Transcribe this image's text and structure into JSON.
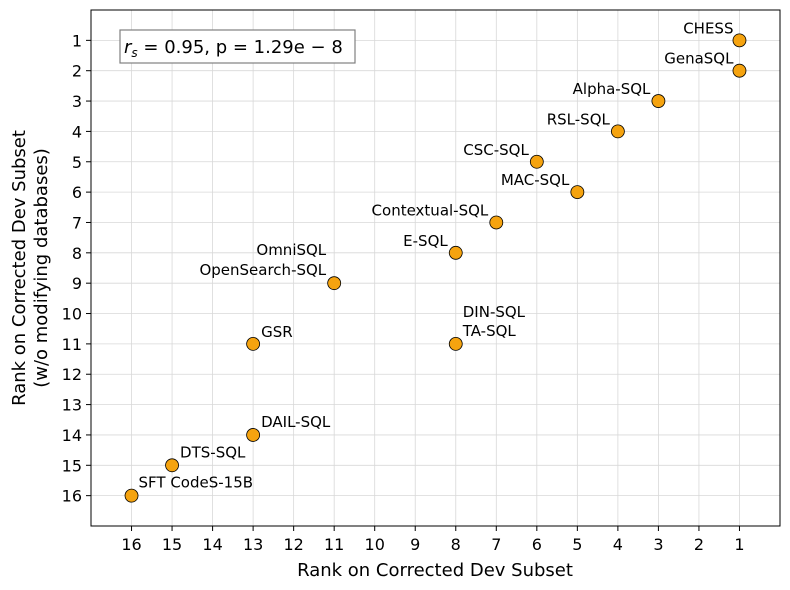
{
  "chart_data": {
    "type": "scatter",
    "xlabel": "Rank on Corrected Dev Subset",
    "ylabel_line1": "Rank on Corrected Dev Subset",
    "ylabel_line2": "(w/o modifying databases)",
    "xlim": [
      17,
      0
    ],
    "ylim": [
      17,
      0
    ],
    "x_inverted": true,
    "y_inverted": true,
    "ticks": [
      1,
      2,
      3,
      4,
      5,
      6,
      7,
      8,
      9,
      10,
      11,
      12,
      13,
      14,
      15,
      16
    ],
    "grid": true,
    "marker_color": "#f5a30f",
    "annotation": {
      "prefix": "r",
      "subscript": "s",
      "text": " = 0.95, p = 1.29e − 8"
    },
    "points": [
      {
        "label": "CHESS",
        "x": 1,
        "y": 1
      },
      {
        "label": "GenaSQL",
        "x": 1,
        "y": 2
      },
      {
        "label": "Alpha-SQL",
        "x": 3,
        "y": 3
      },
      {
        "label": "RSL-SQL",
        "x": 4,
        "y": 4
      },
      {
        "label": "CSC-SQL",
        "x": 6,
        "y": 5
      },
      {
        "label": "MAC-SQL",
        "x": 5,
        "y": 6
      },
      {
        "label": "Contextual-SQL",
        "x": 7,
        "y": 7
      },
      {
        "label": "E-SQL",
        "x": 8,
        "y": 8
      },
      {
        "label": "OmniSQL",
        "x": 11,
        "y": 9
      },
      {
        "label": "OpenSearch-SQL",
        "x": 11,
        "y": 9
      },
      {
        "label": "DIN-SQL",
        "x": 8,
        "y": 11
      },
      {
        "label": "TA-SQL",
        "x": 8,
        "y": 11
      },
      {
        "label": "GSR",
        "x": 13,
        "y": 11
      },
      {
        "label": "DAIL-SQL",
        "x": 13,
        "y": 14
      },
      {
        "label": "DTS-SQL",
        "x": 15,
        "y": 15
      },
      {
        "label": "SFT CodeS-15B",
        "x": 16,
        "y": 16
      }
    ]
  }
}
